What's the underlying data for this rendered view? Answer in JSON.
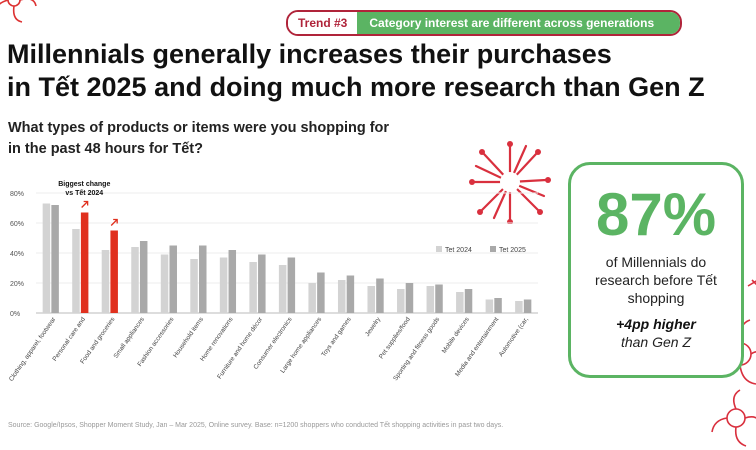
{
  "trend": {
    "tag": "Trend #3",
    "text": "Category interest are different across generations"
  },
  "title": {
    "line1": "Millennials generally increases their purchases",
    "line2": "in Tết 2025 and doing much more research than Gen Z"
  },
  "subtitle": {
    "line1": "What types of products or items were you shopping for",
    "line2": "in the past 48 hours for Tết?"
  },
  "colors": {
    "brand_red": "#b0243a",
    "accent_green": "#5bb463",
    "bar_2024": "#d3d3d3",
    "bar_2025": "#a9a9a9",
    "highlight": "#e0301e"
  },
  "chart_data": {
    "type": "bar",
    "categories": [
      "Clothing, apparel, footwear",
      "Personal care and",
      "Food and groceries",
      "Small appliances",
      "Fashion accessories",
      "Household items",
      "Home renovations",
      "Furniture and home décor",
      "Consumer electronics",
      "Large home appliances",
      "Toys and games",
      "Jewelry",
      "Pet supplies/food",
      "Sporting and fitness goods",
      "Mobile devices",
      "Media and entertainment",
      "Automotive (car,"
    ],
    "series": [
      {
        "name": "Tet 2024",
        "values": [
          73,
          56,
          42,
          44,
          39,
          36,
          37,
          34,
          32,
          20,
          22,
          18,
          16,
          18,
          14,
          9,
          8
        ]
      },
      {
        "name": "Tet 2025",
        "values": [
          72,
          67,
          55,
          48,
          45,
          45,
          42,
          39,
          37,
          27,
          25,
          23,
          20,
          19,
          16,
          10,
          9
        ]
      }
    ],
    "highlighted": [
      1,
      2
    ],
    "yticks": [
      "0%",
      "20%",
      "40%",
      "60%",
      "80%"
    ],
    "ylim": [
      0,
      85
    ],
    "annotation": {
      "line1": "Biggest change",
      "line2": "vs Tết 2024"
    },
    "legend_position": "right"
  },
  "stat": {
    "big": "87%",
    "desc1": "of Millennials do",
    "desc2": "research before Tết",
    "desc3": "shopping",
    "delta": "+4pp higher",
    "comparison": "than Gen Z"
  },
  "source": "Source: Google/Ipsos, Shopper Moment Study, Jan – Mar 2025, Online survey. Base: n=1200 shoppers who conducted Tết shopping activities in past two days."
}
